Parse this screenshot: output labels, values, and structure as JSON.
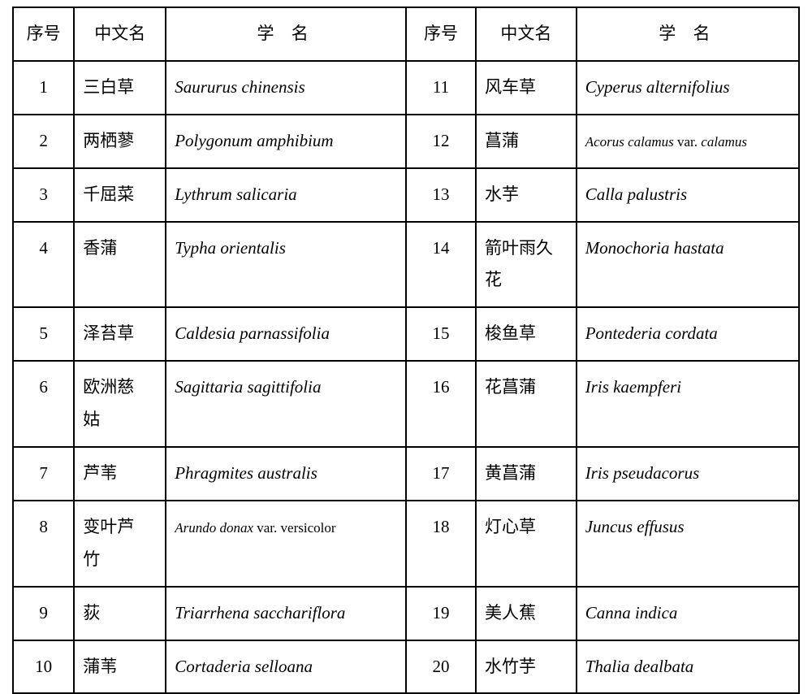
{
  "table": {
    "headers": {
      "num": "序号",
      "zh": "中文名",
      "sci": "学 名",
      "num2": "序号",
      "zh2": "中文名",
      "sci2": "学 名"
    },
    "rows": [
      {
        "n1": "1",
        "zh1": "三白草",
        "sci1": "Saururus chinensis",
        "n2": "11",
        "zh2": "风车草",
        "sci2": "Cyperus alternifolius"
      },
      {
        "n1": "2",
        "zh1": "两栖蓼",
        "sci1": "Polygonum amphibium",
        "n2": "12",
        "zh2": "菖蒲",
        "sci2_html": "<span class='small-sci'><i>Acorus calamus </i><span class='roman'>var.</span><i> calamus</i></span>"
      },
      {
        "n1": "3",
        "zh1": "千屈菜",
        "sci1": "Lythrum salicaria",
        "n2": "13",
        "zh2": "水芋",
        "sci2": "Calla palustris"
      },
      {
        "n1": "4",
        "zh1": "香蒲",
        "sci1": "Typha orientalis",
        "n2": "14",
        "zh2": "箭叶雨久花",
        "sci2": "Monochoria hastata"
      },
      {
        "n1": "5",
        "zh1": "泽苔草",
        "sci1": "Caldesia parnassifolia",
        "n2": "15",
        "zh2": "梭鱼草",
        "sci2": "Pontederia cordata"
      },
      {
        "n1": "6",
        "zh1_html": "<span class='zh-spread'>欧洲慈姑</span>",
        "sci1": "Sagittaria sagittifolia",
        "n2": "16",
        "zh2": "花菖蒲",
        "sci2": "Iris kaempferi"
      },
      {
        "n1": "7",
        "zh1": "芦苇",
        "sci1": "Phragmites australis",
        "n2": "17",
        "zh2": "黄菖蒲",
        "sci2": "Iris pseudacorus"
      },
      {
        "n1": "8",
        "zh1_html": "<span class='zh-spread'>变叶芦竹</span>",
        "sci1_html": "<span class='small-sci'><i>Arundo donax </i><span class='roman'>var. versicolor</span></span>",
        "n2": "18",
        "zh2": "灯心草",
        "sci2": "Juncus effusus"
      },
      {
        "n1": "9",
        "zh1": "荻",
        "sci1": "Triarrhena sacchariflora",
        "n2": "19",
        "zh2": "美人蕉",
        "sci2": "Canna indica"
      },
      {
        "n1": "10",
        "zh1": "蒲苇",
        "sci1": "Cortaderia selloana",
        "n2": "20",
        "zh2": "水竹芋",
        "sci2": "Thalia dealbata"
      }
    ]
  }
}
